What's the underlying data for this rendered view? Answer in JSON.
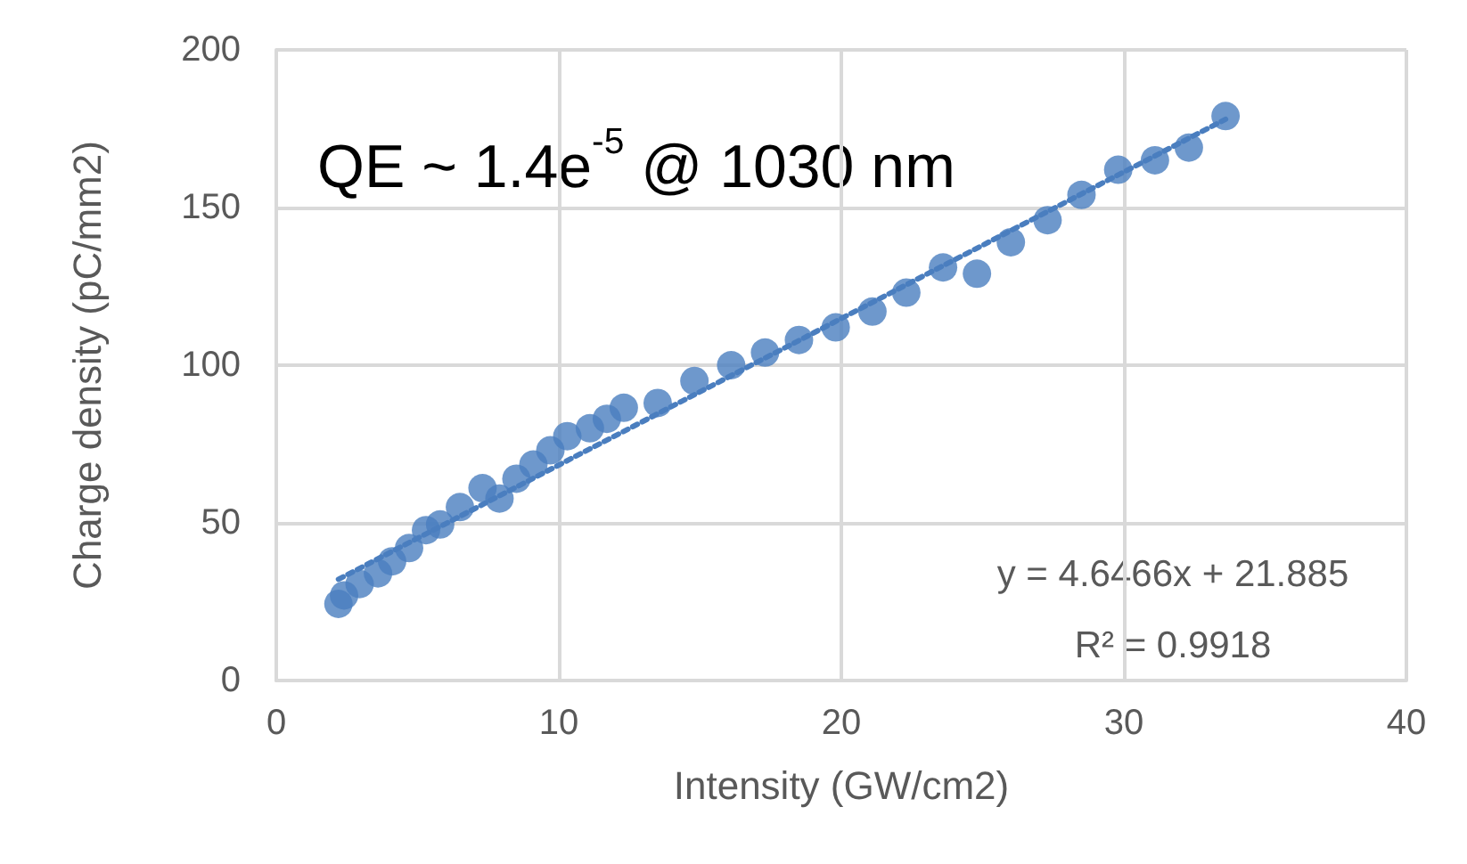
{
  "chart_data": {
    "type": "scatter",
    "xlabel": "Intensity (GW/cm2)",
    "ylabel": "Charge density (pC/mm2)",
    "xlim": [
      0,
      40
    ],
    "xticks": [
      0,
      10,
      20,
      30,
      40
    ],
    "ylim": [
      0,
      200
    ],
    "yticks": [
      0,
      50,
      100,
      150,
      200
    ],
    "grid": true,
    "marker": "circle",
    "annotations": [
      "QE ~ 1.4e$^{-5}$ @ 1030 nm",
      "y = 4.6466x + 21.885",
      "R² = 0.9918"
    ],
    "series": [
      {
        "color": "#4a7ebf",
        "x": [
          2.2,
          2.4,
          2.95,
          3.6,
          4.1,
          4.7,
          5.3,
          5.8,
          6.5,
          7.3,
          7.9,
          8.5,
          9.1,
          9.7,
          10.3,
          11.1,
          11.7,
          12.3,
          13.5,
          14.8,
          16.1,
          17.3,
          18.5,
          19.8,
          21.1,
          22.3,
          23.6,
          24.8,
          26.0,
          27.3,
          28.5,
          29.8,
          31.1,
          32.3,
          33.6
        ],
        "values": [
          24.3,
          27,
          30.6,
          34,
          37.8,
          42,
          47.7,
          49.5,
          55,
          61,
          57.7,
          64,
          68.5,
          73,
          77.5,
          80,
          83,
          86.5,
          88,
          95,
          100,
          104,
          108,
          112,
          117,
          123,
          131,
          129,
          139,
          146,
          154,
          162,
          165,
          169,
          179
        ]
      },
      {
        "type": "line",
        "line_style": "dotted",
        "marker": "none",
        "color": "#4a7ebf",
        "x": [
          2.2,
          33.6
        ],
        "values": [
          32.1,
          178
        ]
      }
    ]
  }
}
